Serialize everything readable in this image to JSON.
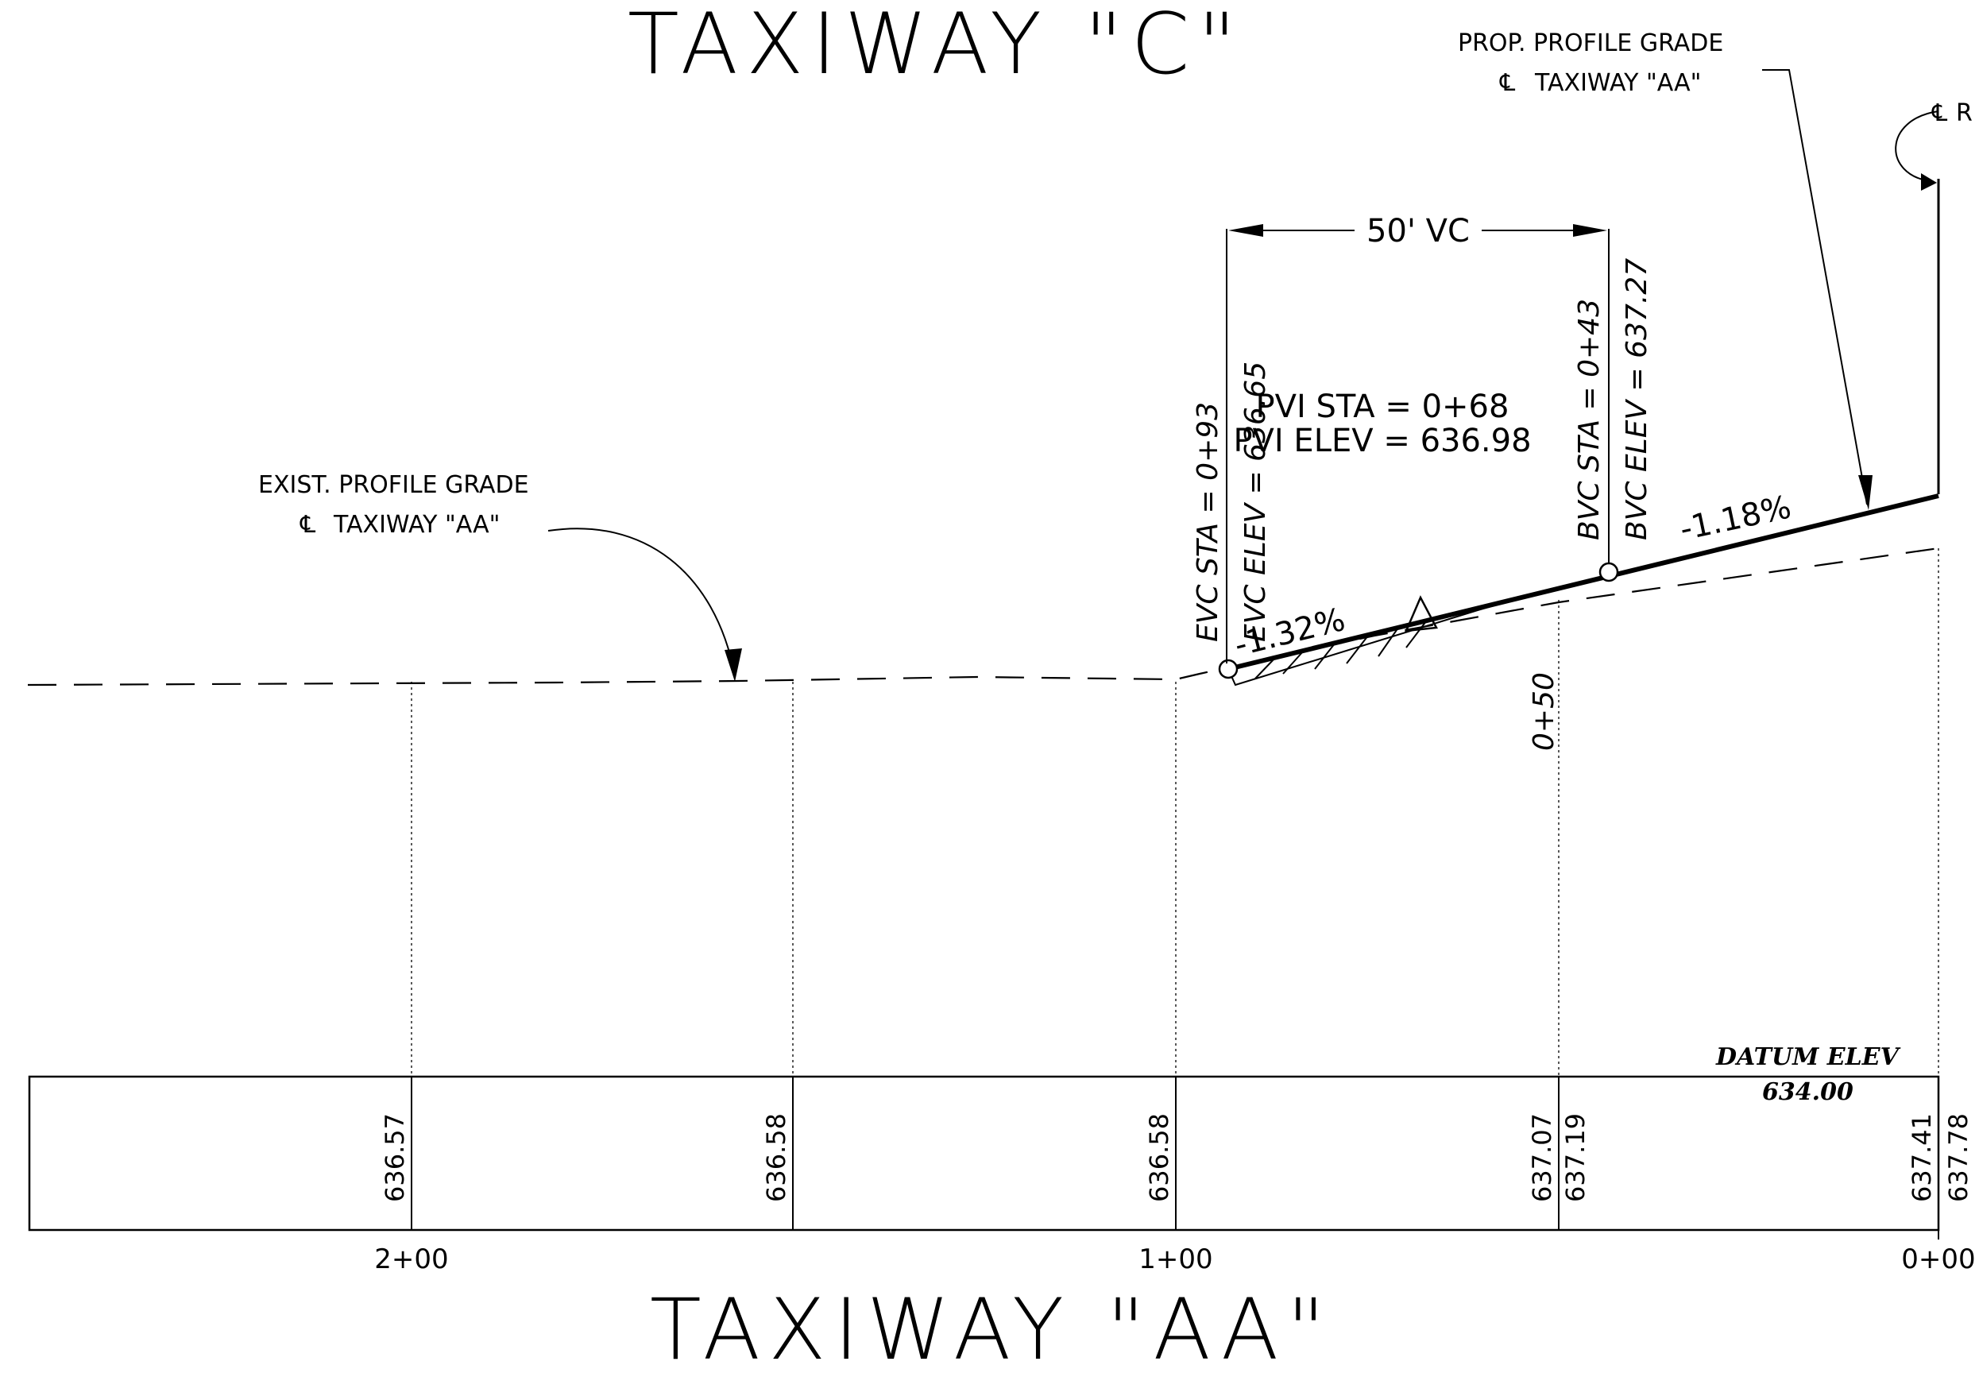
{
  "titles": {
    "top": "TAXIWAY \"C\"",
    "bottom": "TAXIWAY \"AA\""
  },
  "labels": {
    "prop_grade_line1": "PROP. PROFILE GRADE",
    "prop_grade_line2": "TAXIWAY \"AA\"",
    "exist_grade_line1": "EXIST. PROFILE GRADE",
    "exist_grade_line2": "TAXIWAY \"AA\"",
    "centerline_right": "R",
    "vc_length": "50' VC",
    "pvi_sta": "PVI STA = 0+68",
    "pvi_elev": "PVI ELEV = 636.98",
    "evc_sta": "EVC STA = 0+93",
    "evc_elev": "EVC ELEV = 636.65",
    "bvc_sta": "BVC STA = 0+43",
    "bvc_elev": "BVC ELEV = 637.27",
    "grade_left": "-1.32%",
    "grade_right": "-1.18%",
    "station_mid": "0+50",
    "datum_title": "DATUM ELEV",
    "datum_value": "634.00"
  },
  "stations": [
    "2+00",
    "1+00",
    "0+00"
  ],
  "elevations": [
    "636.57",
    "636.58",
    "636.58",
    "637.07",
    "637.19",
    "637.41",
    "637.78"
  ]
}
